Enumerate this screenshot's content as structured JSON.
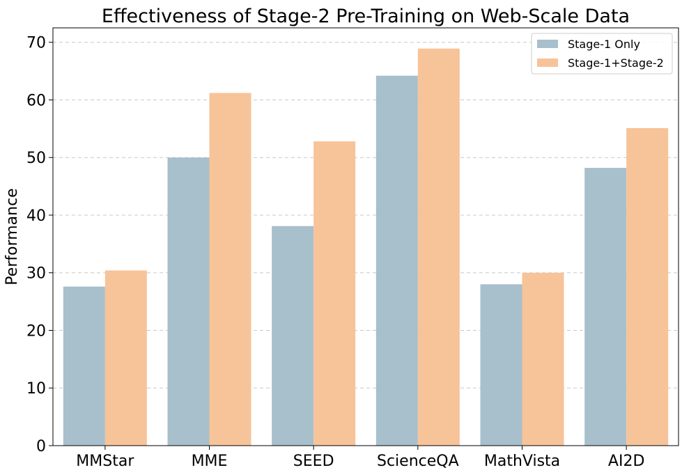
{
  "chart_data": {
    "type": "bar",
    "title": "Effectiveness of Stage-2 Pre-Training on Web-Scale Data",
    "xlabel": "",
    "ylabel": "Performance",
    "categories": [
      "MMStar",
      "MME",
      "SEED",
      "ScienceQA",
      "MathVista",
      "AI2D"
    ],
    "series": [
      {
        "name": "Stage-1 Only",
        "color": "#a8bfcc",
        "values": [
          27.6,
          50.0,
          38.1,
          64.2,
          28.0,
          48.2
        ]
      },
      {
        "name": "Stage-1+Stage-2",
        "color": "#f7c399",
        "values": [
          30.4,
          61.2,
          52.8,
          68.9,
          30.0,
          55.1
        ]
      }
    ],
    "ylim": [
      0,
      72.5
    ],
    "yticks": [
      0,
      10,
      20,
      30,
      40,
      50,
      60,
      70
    ],
    "grid": "y-dashed",
    "legend_position": "top-right"
  }
}
